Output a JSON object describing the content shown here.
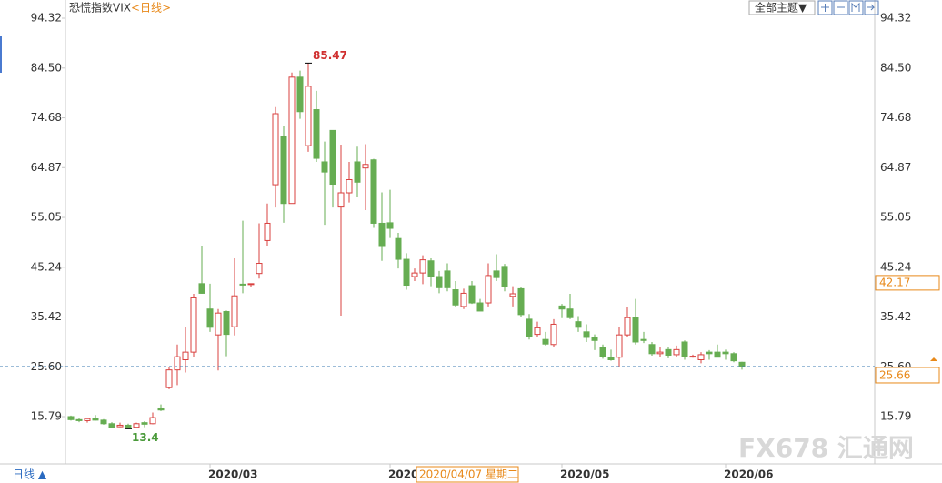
{
  "chart_data": {
    "type": "candlestick",
    "title": "恐慌指数VIX",
    "period": "<日线>",
    "theme_button": "全部主题▼",
    "period_toggle": "日线 ▲",
    "watermark": "FX678 汇通网",
    "up_color": "#d9413f",
    "down_color": "#66ad52",
    "grid": false,
    "ylim": [
      6.83,
      97.55
    ],
    "yticks": [
      94.32,
      {
        "value": 84.5,
        "label": "84.50"
      },
      74.68,
      64.87,
      55.05,
      45.24,
      35.42,
      {
        "value": 25.6,
        "label": "25.60"
      },
      15.79
    ],
    "crosshair": {
      "x_label": "2020/04/07 星期二",
      "y_value": 42.17
    },
    "categories": [
      null,
      null,
      null,
      null,
      null,
      null,
      null,
      null,
      null,
      null,
      null,
      null,
      null,
      null,
      null,
      null,
      null,
      "2020/03",
      null,
      null,
      null,
      null,
      null,
      null,
      null,
      null,
      null,
      null,
      null,
      null,
      null,
      null,
      null,
      null,
      null,
      null,
      null,
      null,
      null,
      "2020",
      null,
      null,
      null,
      null,
      null,
      null,
      null,
      null,
      null,
      null,
      null,
      null,
      null,
      null,
      null,
      null,
      null,
      null,
      null,
      null,
      "2020/05",
      null,
      null,
      null,
      null,
      null,
      null,
      null,
      null,
      null,
      null,
      null,
      null,
      null,
      null,
      null,
      null,
      null,
      null,
      null,
      "2020/06",
      null,
      null
    ],
    "open": [
      15.8,
      15.2,
      15.0,
      15.5,
      15.1,
      14.4,
      13.8,
      14.1,
      13.7,
      14.6,
      14.4,
      17.5,
      21.5,
      25.0,
      27.0,
      28.5,
      42.0,
      37.0,
      31.9,
      36.5,
      33.5,
      41.9,
      41.9,
      44.0,
      50.5,
      61.5,
      71.0,
      57.8,
      82.7,
      69.2,
      76.3,
      66.0,
      72.2,
      57.1,
      59.9,
      66.0,
      64.8,
      66.4,
      53.9,
      54.0,
      50.9,
      46.8,
      43.4,
      44.1,
      46.5,
      43.4,
      44.5,
      40.8,
      37.5,
      41.6,
      38.2,
      38.2,
      44.5,
      45.4,
      39.5,
      41.0,
      35.0,
      32.0,
      31.0,
      30.0,
      37.6,
      37.0,
      34.5,
      32.5,
      31.4,
      29.5,
      27.5,
      27.5,
      31.9,
      35.3,
      31.0,
      30.0,
      28.2,
      29.0,
      28.0,
      30.5,
      27.6,
      27.0,
      28.5,
      28.5,
      28.5,
      28.2,
      26.5
    ],
    "high": [
      16.0,
      15.5,
      15.6,
      16.1,
      15.3,
      14.7,
      14.6,
      14.4,
      14.6,
      14.9,
      16.6,
      18.2,
      25.5,
      30.0,
      33.5,
      40.0,
      49.5,
      42.0,
      37.0,
      36.7,
      47.0,
      54.4,
      42.0,
      53.9,
      57.8,
      76.8,
      73.0,
      83.6,
      84.0,
      85.47,
      80.0,
      70.0,
      72.2,
      69.4,
      66.0,
      69.0,
      69.5,
      66.6,
      60.0,
      60.5,
      52.0,
      48.0,
      45.0,
      47.6,
      47.0,
      44.5,
      46.0,
      42.5,
      41.0,
      42.5,
      39.0,
      46.0,
      47.8,
      45.9,
      41.5,
      41.4,
      36.0,
      34.5,
      32.5,
      35.0,
      38.0,
      40.0,
      35.6,
      34.0,
      32.0,
      30.0,
      29.0,
      33.5,
      37.3,
      39.0,
      32.5,
      30.5,
      29.5,
      29.6,
      29.8,
      30.8,
      28.0,
      28.5,
      28.9,
      30.0,
      29.0,
      28.5,
      26.6
    ],
    "low": [
      15.0,
      14.7,
      14.6,
      15.0,
      14.2,
      13.7,
      13.7,
      13.4,
      13.6,
      13.7,
      14.3,
      16.9,
      21.2,
      22.0,
      24.5,
      27.5,
      40.0,
      32.5,
      24.9,
      27.7,
      31.8,
      40.1,
      41.4,
      43.0,
      49.5,
      57.0,
      54.0,
      57.8,
      74.5,
      68.0,
      66.0,
      53.6,
      57.0,
      35.7,
      58.0,
      59.0,
      56.5,
      53.0,
      46.5,
      51.0,
      45.0,
      40.8,
      42.5,
      41.9,
      41.5,
      40.1,
      40.5,
      37.3,
      37.0,
      38.0,
      36.6,
      37.5,
      42.5,
      40.5,
      37.5,
      35.4,
      31.0,
      31.5,
      29.8,
      29.5,
      35.2,
      35.0,
      32.5,
      30.5,
      28.9,
      27.2,
      26.8,
      25.6,
      31.5,
      30.0,
      30.3,
      27.8,
      27.5,
      27.3,
      27.5,
      27.0,
      27.4,
      26.3,
      27.0,
      27.5,
      27.0,
      26.5,
      25.04
    ],
    "close": [
      15.2,
      15.0,
      15.4,
      15.1,
      14.4,
      13.7,
      14.1,
      13.7,
      14.4,
      14.3,
      15.6,
      17.1,
      25.0,
      27.6,
      28.5,
      39.2,
      40.1,
      33.4,
      36.2,
      32.0,
      39.6,
      41.8,
      42.0,
      46.0,
      53.9,
      75.5,
      57.8,
      82.7,
      75.9,
      80.9,
      66.7,
      64.0,
      61.6,
      59.9,
      62.5,
      62.0,
      65.5,
      53.9,
      49.5,
      52.9,
      46.8,
      41.7,
      44.1,
      46.7,
      43.4,
      41.2,
      41.2,
      37.8,
      40.1,
      38.2,
      36.6,
      43.6,
      43.2,
      41.4,
      40.0,
      35.9,
      31.5,
      33.3,
      30.1,
      34.0,
      37.0,
      35.3,
      33.4,
      31.4,
      30.8,
      27.6,
      27.0,
      31.9,
      35.3,
      30.5,
      30.8,
      28.2,
      28.5,
      27.9,
      29.0,
      27.6,
      27.7,
      28.0,
      28.2,
      27.5,
      28.2,
      26.8,
      25.66
    ]
  }
}
